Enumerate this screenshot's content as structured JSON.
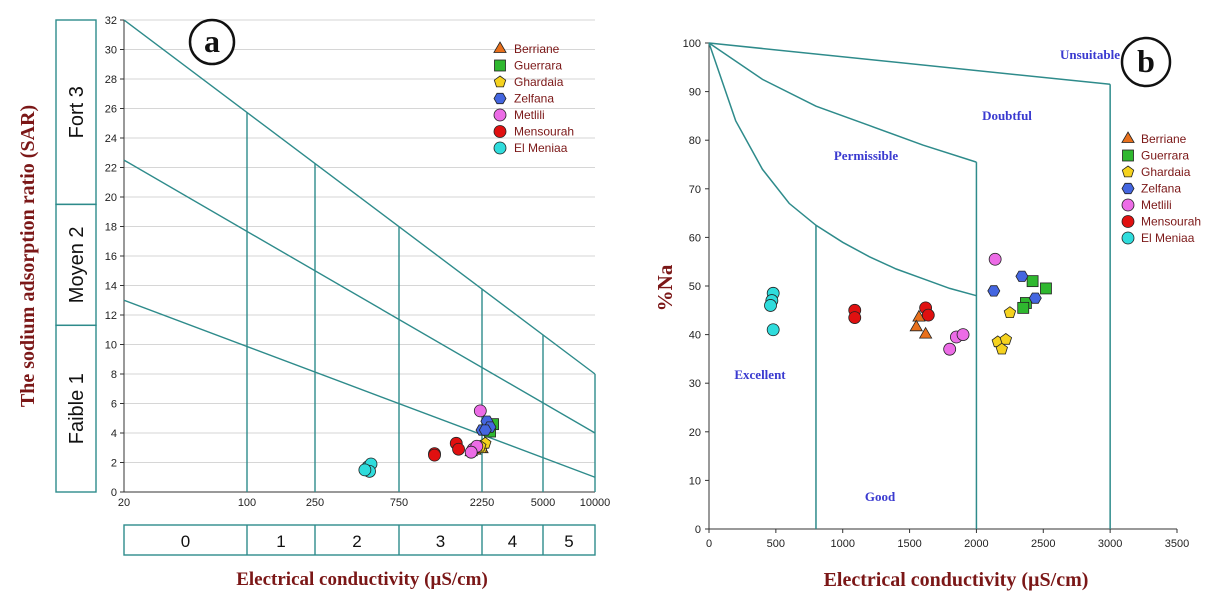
{
  "chart_data": [
    {
      "panel_label": "a",
      "type": "scatter",
      "ylabel": "The sodium adsorption ratio (SAR)",
      "xlabel": "Electrical conductivity (µS/cm)",
      "xscale": "custom-piecewise",
      "x_ticks": [
        "20",
        "100",
        "250",
        "750",
        "2250",
        "5000",
        "10000"
      ],
      "y_ticks": [
        "0",
        "2",
        "4",
        "6",
        "8",
        "10",
        "12",
        "14",
        "16",
        "18",
        "20",
        "22",
        "24",
        "26",
        "28",
        "30",
        "32"
      ],
      "ylim": [
        0,
        32
      ],
      "sar_classes": [
        {
          "label": "Faible  1",
          "from": 0,
          "to": 11.3
        },
        {
          "label": "Moyen  2",
          "from": 11.3,
          "to": 19.5
        },
        {
          "label": "Fort  3",
          "from": 19.5,
          "to": 32
        }
      ],
      "ec_classes": [
        "0",
        "1",
        "2",
        "3",
        "4",
        "5"
      ],
      "boundary_lines": [
        {
          "from": [
            20,
            13
          ],
          "to": [
            10000,
            1
          ]
        },
        {
          "from": [
            20,
            22.5
          ],
          "to": [
            10000,
            4
          ]
        },
        {
          "from": [
            20,
            32
          ],
          "to": [
            10000,
            8
          ]
        }
      ],
      "legend_position": "top-right",
      "series": [
        {
          "name": "Berriane",
          "marker": "triangle",
          "color": "#e8701c",
          "points": [
            [
              1950,
              2.7
            ],
            [
              2050,
              2.8
            ],
            [
              2250,
              2.9
            ]
          ]
        },
        {
          "name": "Guerrara",
          "marker": "square",
          "color": "#2fb82f",
          "points": [
            [
              2600,
              4.6
            ],
            [
              2500,
              4.1
            ]
          ]
        },
        {
          "name": "Ghardaia",
          "marker": "pentagon",
          "color": "#f5d21e",
          "points": [
            [
              2250,
              3.0
            ],
            [
              2350,
              3.3
            ],
            [
              2200,
              3.1
            ]
          ]
        },
        {
          "name": "Zelfana",
          "marker": "hexagon",
          "color": "#4466e0",
          "points": [
            [
              2400,
              4.8
            ],
            [
              2250,
              4.2
            ],
            [
              2500,
              4.4
            ],
            [
              2350,
              4.2
            ]
          ]
        },
        {
          "name": "Metlili",
          "marker": "circle",
          "color": "#ec6ce6",
          "points": [
            [
              2200,
              5.5
            ],
            [
              2000,
              2.9
            ],
            [
              2100,
              3.1
            ],
            [
              1950,
              2.7
            ]
          ]
        },
        {
          "name": "Mensourah",
          "marker": "circle",
          "color": "#e01010",
          "points": [
            [
              1200,
              2.6
            ],
            [
              1600,
              3.3
            ],
            [
              1650,
              2.9
            ],
            [
              1200,
              2.5
            ]
          ]
        },
        {
          "name": "El Meniaa",
          "marker": "circle",
          "color": "#2fdcdc",
          "points": [
            [
              500,
              1.7
            ],
            [
              520,
              1.9
            ],
            [
              510,
              1.4
            ],
            [
              480,
              1.5
            ]
          ]
        }
      ]
    },
    {
      "panel_label": "b",
      "type": "scatter",
      "ylabel": "%Na",
      "xlabel": "Electrical conductivity (µS/cm)",
      "xlim": [
        0,
        3500
      ],
      "ylim": [
        0,
        100
      ],
      "x_ticks": [
        "0",
        "500",
        "1000",
        "1500",
        "2000",
        "2500",
        "3000",
        "3500"
      ],
      "y_ticks": [
        "0",
        "10",
        "20",
        "30",
        "40",
        "50",
        "60",
        "70",
        "80",
        "90",
        "100"
      ],
      "zones": [
        "Excellent",
        "Good",
        "Permissible",
        "Doubtful",
        "Unsuitable"
      ],
      "legend_position": "top-right",
      "series": [
        {
          "name": "Berriane",
          "marker": "triangle",
          "color": "#e8701c",
          "points": [
            [
              1570,
              43.5
            ],
            [
              1550,
              41.5
            ],
            [
              1620,
              40.0
            ]
          ]
        },
        {
          "name": "Guerrara",
          "marker": "square",
          "color": "#2fb82f",
          "points": [
            [
              2420,
              51
            ],
            [
              2520,
              49.5
            ],
            [
              2370,
              46.5
            ],
            [
              2350,
              45.5
            ]
          ]
        },
        {
          "name": "Ghardaia",
          "marker": "pentagon",
          "color": "#f5d21e",
          "points": [
            [
              2250,
              44.5
            ],
            [
              2160,
              38.5
            ],
            [
              2220,
              39.0
            ],
            [
              2190,
              37.0
            ]
          ]
        },
        {
          "name": "Zelfana",
          "marker": "hexagon",
          "color": "#4466e0",
          "points": [
            [
              2340,
              52
            ],
            [
              2130,
              49
            ],
            [
              2440,
              47.5
            ]
          ]
        },
        {
          "name": "Metlili",
          "marker": "circle",
          "color": "#ec6ce6",
          "points": [
            [
              2140,
              55.5
            ],
            [
              1850,
              39.5
            ],
            [
              1900,
              40.0
            ],
            [
              1800,
              37.0
            ]
          ]
        },
        {
          "name": "Mensourah",
          "marker": "circle",
          "color": "#e01010",
          "points": [
            [
              1090,
              45.0
            ],
            [
              1090,
              43.5
            ],
            [
              1620,
              45.5
            ],
            [
              1640,
              44.0
            ]
          ]
        },
        {
          "name": "El Meniaa",
          "marker": "circle",
          "color": "#2fdcdc",
          "points": [
            [
              480,
              48.5
            ],
            [
              470,
              47.0
            ],
            [
              460,
              46.0
            ],
            [
              480,
              41.0
            ]
          ]
        }
      ]
    }
  ]
}
